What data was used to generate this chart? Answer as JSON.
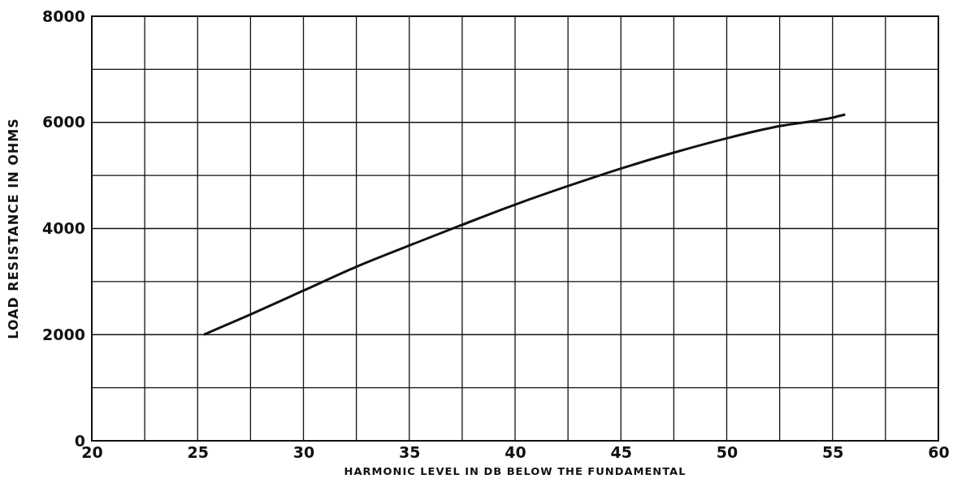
{
  "chart_data": {
    "type": "line",
    "xlabel": "HARMONIC LEVEL IN DB BELOW THE FUNDAMENTAL",
    "ylabel": "LOAD RESISTANCE IN OHMS",
    "x": [
      25.3,
      27.5,
      30,
      32.5,
      35,
      37.5,
      40,
      42.5,
      45,
      47.5,
      50,
      52.5,
      55,
      55.6
    ],
    "series": [
      {
        "color": "#111111",
        "values": [
          2000,
          2380,
          2830,
          3280,
          3680,
          4070,
          4450,
          4800,
          5130,
          5430,
          5700,
          5930,
          6090,
          6150
        ]
      }
    ],
    "xlim": [
      20,
      60
    ],
    "ylim": [
      0,
      8000
    ],
    "xticks": [
      20,
      {
        "value": 22.5,
        "label": null
      },
      25,
      {
        "value": 27.5,
        "label": null
      },
      30,
      {
        "value": 32.5,
        "label": null
      },
      35,
      {
        "value": 37.5,
        "label": null
      },
      40,
      {
        "value": 42.5,
        "label": null
      },
      45,
      {
        "value": 47.5,
        "label": null
      },
      50,
      {
        "value": 52.5,
        "label": null
      },
      55,
      {
        "value": 57.5,
        "label": null
      },
      60
    ],
    "yticks": [
      0,
      {
        "value": 1000,
        "label": null
      },
      2000,
      {
        "value": 3000,
        "label": null
      },
      4000,
      {
        "value": 5000,
        "label": null
      },
      6000,
      {
        "value": 7000,
        "label": null
      },
      8000
    ],
    "grid": true,
    "marker": "none",
    "line_style": "solid"
  }
}
